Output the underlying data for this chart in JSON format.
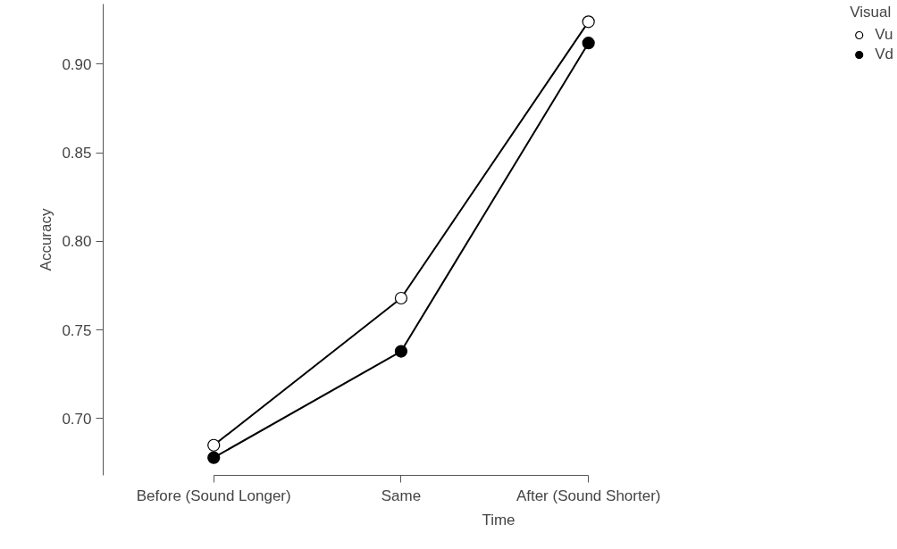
{
  "chart_data": {
    "type": "line",
    "xlabel": "Time",
    "ylabel": "Accuracy",
    "legend_title": "Visual",
    "categories": [
      "Before (Sound Longer)",
      "Same",
      "After (Sound Shorter)"
    ],
    "series": [
      {
        "name": "Vu",
        "color": "#ffffff",
        "values": [
          0.685,
          0.768,
          0.924
        ]
      },
      {
        "name": "Vd",
        "color": "#000000",
        "values": [
          0.678,
          0.738,
          0.912
        ]
      }
    ],
    "ylim": [
      0.668,
      0.934
    ],
    "yticks": [
      {
        "value": 0.7,
        "label": "0.70"
      },
      0.75,
      {
        "value": 0.8,
        "label": "0.80"
      },
      0.85,
      {
        "value": 0.9,
        "label": "0.90"
      }
    ],
    "grid": false,
    "legend": "top right",
    "marker": "circle",
    "line_style": "solid"
  }
}
